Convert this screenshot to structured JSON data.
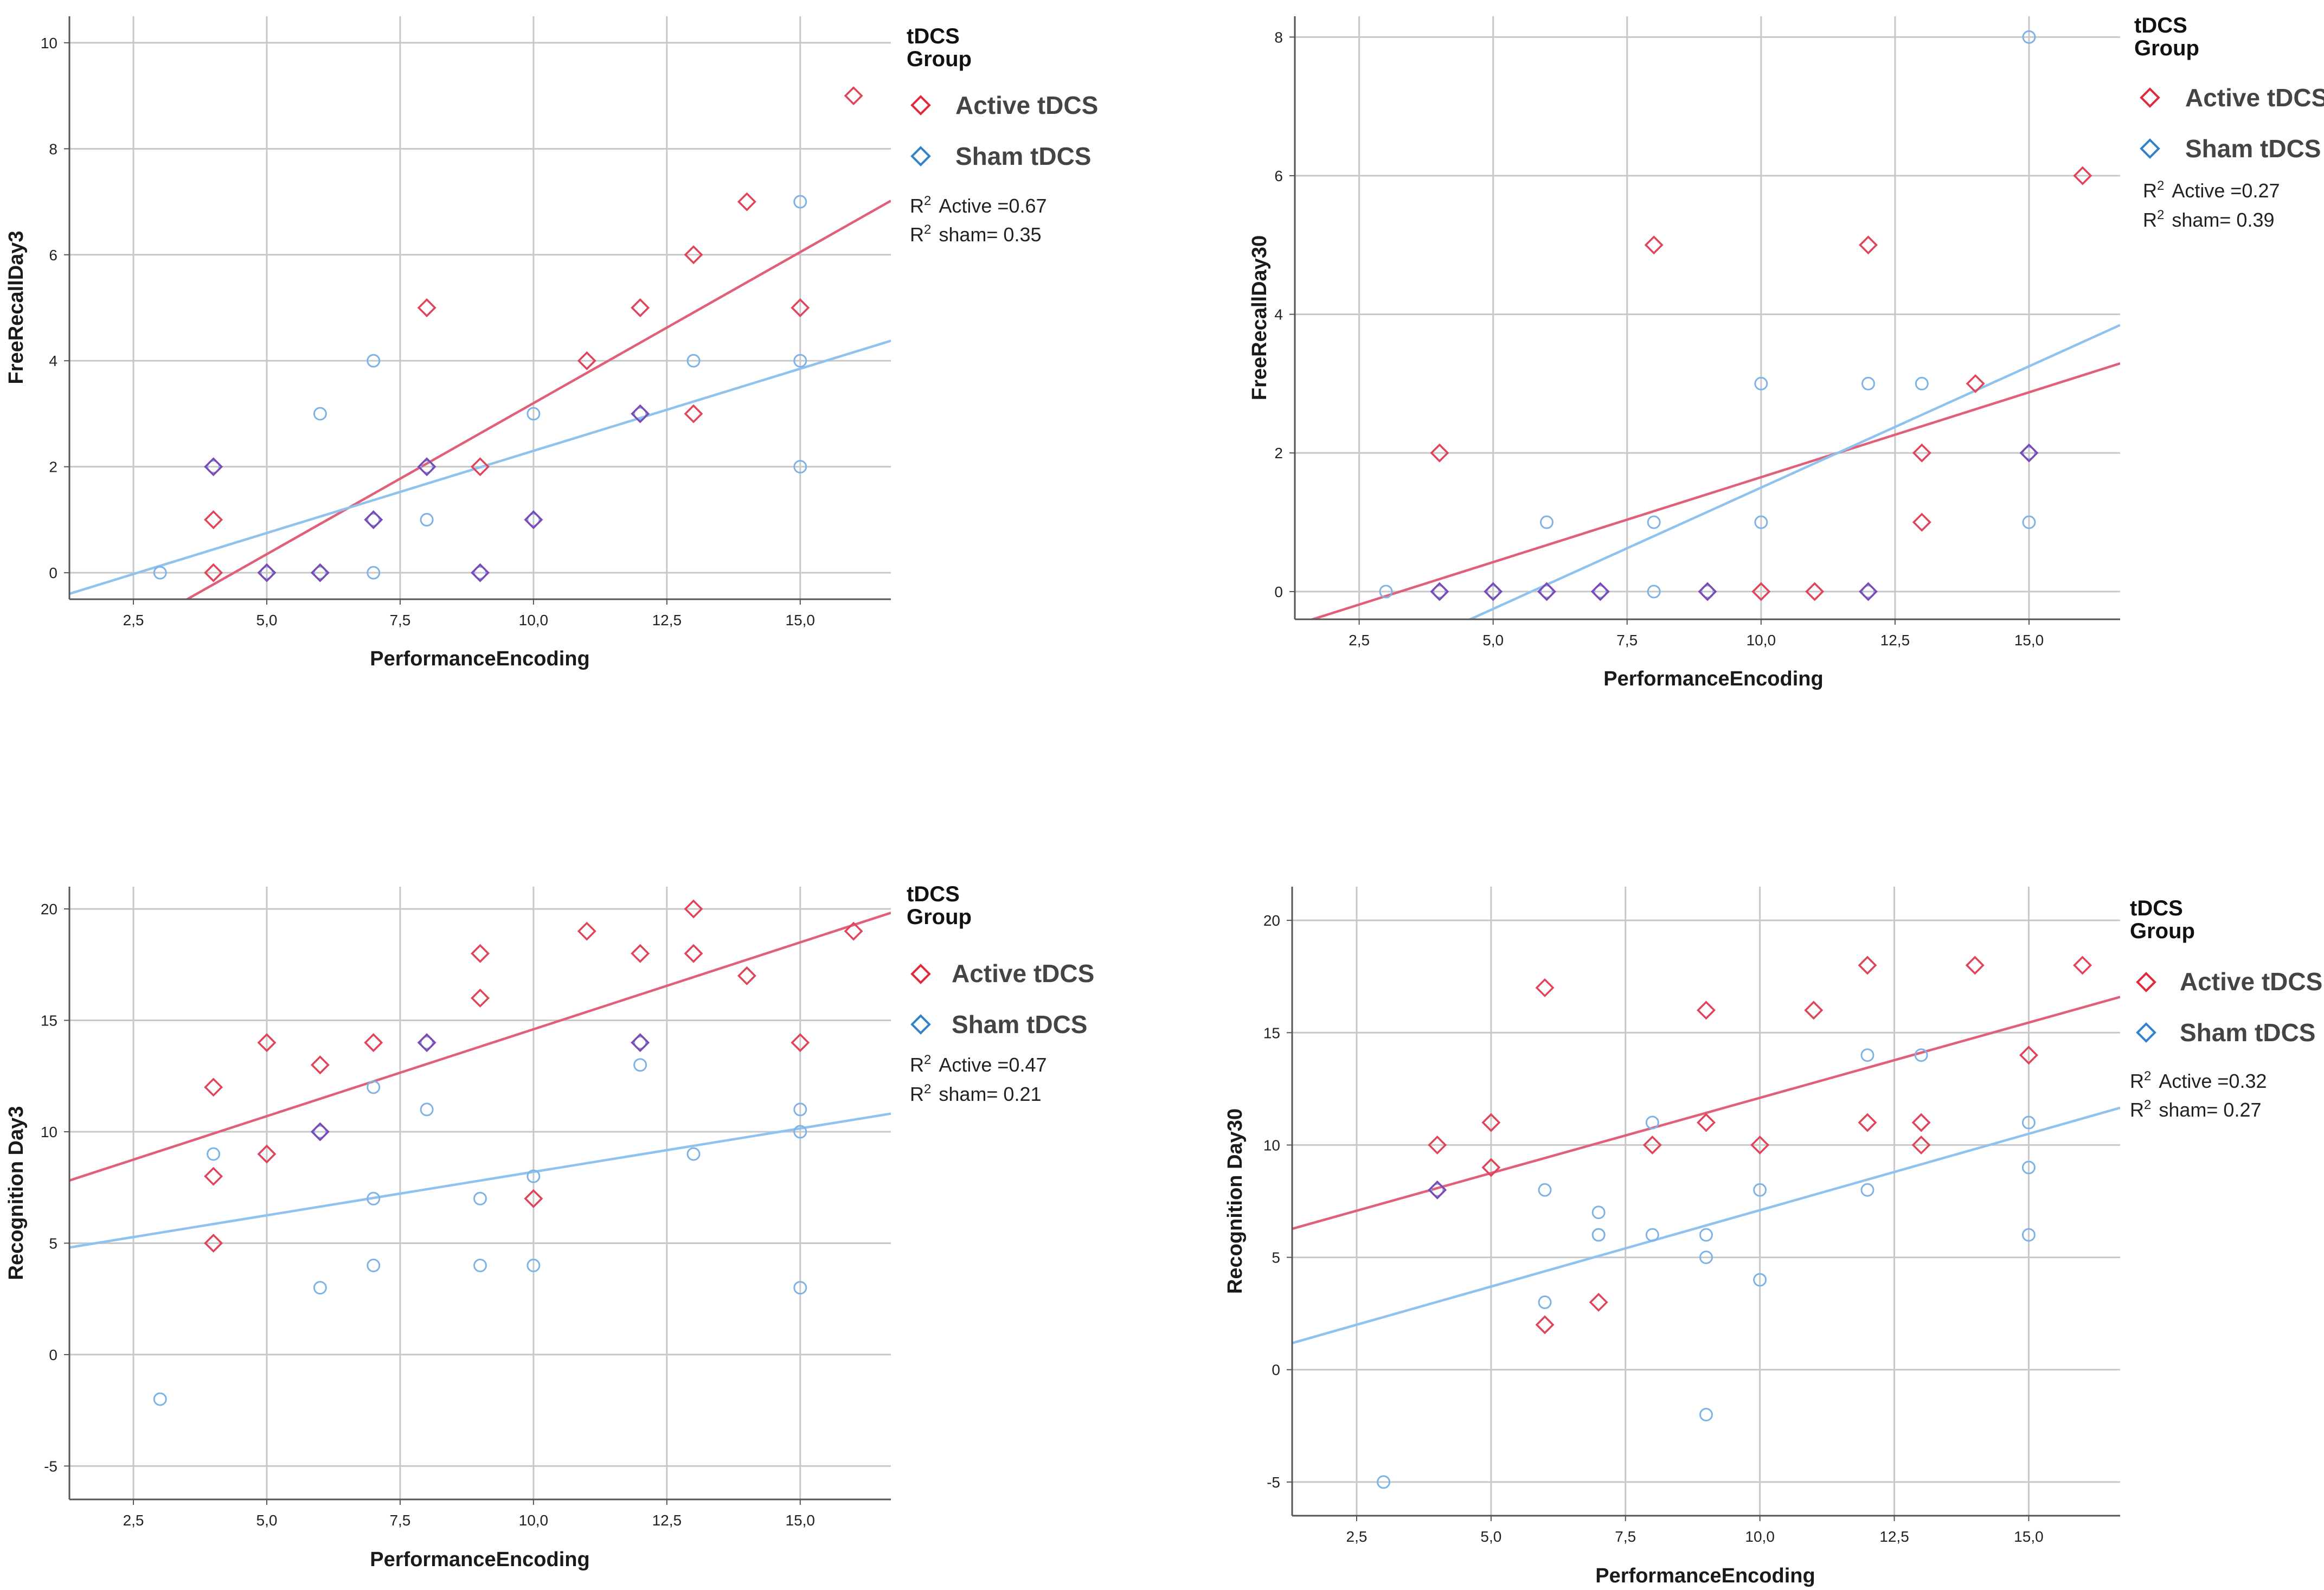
{
  "figure_title": "",
  "colors": {
    "active": "#e0435a",
    "active_line": "#e0607a",
    "sham": "#7fb2e6",
    "sham_line": "#8fc3ee",
    "grid": "#c8c8c8",
    "overlap": "#7d4ab5",
    "legend_active": "#e02a3c",
    "legend_sham": "#2f82c8"
  },
  "chart_data": [
    {
      "type": "scatter",
      "id": "p1",
      "title": "",
      "xlabel": "PerformanceEncoding",
      "ylabel": "FreeRecallDay3",
      "xlim": [
        1.3,
        16.7
      ],
      "ylim": [
        -0.5,
        10.5
      ],
      "xticks": [
        2.5,
        5.0,
        7.5,
        10.0,
        12.5,
        15.0
      ],
      "xtick_labels": [
        "2,5",
        "5,0",
        "7,5",
        "10,0",
        "12,5",
        "15,0"
      ],
      "yticks": [
        0,
        2,
        4,
        6,
        8,
        10
      ],
      "ytick_labels": [
        "0",
        "2",
        "4",
        "6",
        "8",
        "10"
      ],
      "legend": {
        "title_line1": "tDCS",
        "title_line2": "Group",
        "items": [
          {
            "label": "Active tDCS",
            "series": "active"
          },
          {
            "label": "Sham tDCS",
            "series": "sham"
          }
        ],
        "r2_active": "Active =0.67",
        "r2_sham": "sham= 0.35",
        "position": "right"
      },
      "series": [
        {
          "name": "Active tDCS",
          "marker": "diamond",
          "x": [
            4,
            4,
            4,
            5,
            6,
            7,
            8,
            8,
            9,
            9,
            10,
            11,
            12,
            12,
            13,
            13,
            14,
            15,
            16
          ],
          "y": [
            2,
            1,
            0,
            0,
            0,
            1,
            5,
            2,
            2,
            0,
            1,
            4,
            5,
            3,
            6,
            3,
            7,
            5,
            9
          ],
          "fit": {
            "slope": 0.57,
            "intercept": -2.5,
            "r2": 0.67
          }
        },
        {
          "name": "Sham tDCS",
          "marker": "circle",
          "x": [
            3,
            4,
            5,
            6,
            6,
            7,
            7,
            7,
            8,
            8,
            9,
            10,
            10,
            12,
            13,
            15,
            15,
            15
          ],
          "y": [
            0,
            2,
            0,
            3,
            0,
            4,
            1,
            0,
            2,
            1,
            0,
            3,
            1,
            3,
            4,
            7,
            4,
            2
          ],
          "fit": {
            "slope": 0.31,
            "intercept": -0.8,
            "r2": 0.35
          }
        }
      ]
    },
    {
      "type": "scatter",
      "id": "p2",
      "title": "",
      "xlabel": "PerformanceEncoding",
      "ylabel": "FreeRecallDay30",
      "xlim": [
        1.3,
        16.7
      ],
      "ylim": [
        -0.4,
        8.3
      ],
      "xticks": [
        2.5,
        5.0,
        7.5,
        10.0,
        12.5,
        15.0
      ],
      "xtick_labels": [
        "2,5",
        "5,0",
        "7,5",
        "10,0",
        "12,5",
        "15,0"
      ],
      "yticks": [
        0,
        2,
        4,
        6,
        8
      ],
      "ytick_labels": [
        "0",
        "2",
        "4",
        "6",
        "8"
      ],
      "legend": {
        "title_line1": "tDCS",
        "title_line2": "Group",
        "items": [
          {
            "label": "Active tDCS",
            "series": "active"
          },
          {
            "label": "Sham tDCS",
            "series": "sham"
          }
        ],
        "r2_active": "Active =0.27",
        "r2_sham": "sham= 0.39",
        "position": "right"
      },
      "series": [
        {
          "name": "Active tDCS",
          "marker": "diamond",
          "x": [
            4,
            4,
            5,
            6,
            7,
            8,
            9,
            10,
            11,
            12,
            12,
            13,
            13,
            14,
            15,
            16
          ],
          "y": [
            2,
            0,
            0,
            0,
            0,
            5,
            0,
            0,
            0,
            5,
            0,
            2,
            1,
            3,
            2,
            6
          ],
          "fit": {
            "slope": 0.245,
            "intercept": -0.8,
            "r2": 0.27
          }
        },
        {
          "name": "Sham tDCS",
          "marker": "circle",
          "x": [
            3,
            4,
            5,
            6,
            6,
            7,
            8,
            8,
            9,
            10,
            10,
            12,
            12,
            13,
            15,
            15,
            15
          ],
          "y": [
            0,
            0,
            0,
            1,
            0,
            0,
            1,
            0,
            0,
            3,
            1,
            3,
            0,
            3,
            8,
            2,
            1
          ],
          "fit": {
            "slope": 0.35,
            "intercept": -2.0,
            "r2": 0.39
          }
        }
      ]
    },
    {
      "type": "scatter",
      "id": "p3",
      "title": "",
      "xlabel": "PerformanceEncoding",
      "ylabel": "Recognition Day3",
      "xlim": [
        1.3,
        16.7
      ],
      "ylim": [
        -6.5,
        21.0
      ],
      "xticks": [
        2.5,
        5.0,
        7.5,
        10.0,
        12.5,
        15.0
      ],
      "xtick_labels": [
        "2,5",
        "5,0",
        "7,5",
        "10,0",
        "12,5",
        "15,0"
      ],
      "yticks": [
        -5,
        0,
        5,
        10,
        15,
        20
      ],
      "ytick_labels": [
        "-5",
        "0",
        "5",
        "10",
        "15",
        "20"
      ],
      "legend": {
        "title_line1": "tDCS",
        "title_line2": "Group",
        "items": [
          {
            "label": "Active tDCS",
            "series": "active"
          },
          {
            "label": "Sham tDCS",
            "series": "sham"
          }
        ],
        "r2_active": "Active =0.47",
        "r2_sham": "sham= 0.21",
        "position": "right"
      },
      "series": [
        {
          "name": "Active tDCS",
          "marker": "diamond",
          "x": [
            4,
            4,
            4,
            5,
            5,
            6,
            6,
            7,
            8,
            9,
            9,
            10,
            11,
            12,
            12,
            13,
            13,
            14,
            15,
            16
          ],
          "y": [
            12,
            8,
            5,
            14,
            9,
            13,
            10,
            14,
            14,
            18,
            16,
            7,
            19,
            18,
            14,
            20,
            18,
            17,
            14,
            19
          ],
          "fit": {
            "slope": 0.78,
            "intercept": 6.8,
            "r2": 0.47
          }
        },
        {
          "name": "Sham tDCS",
          "marker": "circle",
          "x": [
            3,
            4,
            6,
            6,
            7,
            7,
            7,
            8,
            8,
            9,
            9,
            10,
            10,
            12,
            12,
            13,
            15,
            15,
            15
          ],
          "y": [
            -2,
            9,
            10,
            3,
            12,
            7,
            4,
            14,
            11,
            7,
            4,
            8,
            4,
            14,
            13,
            9,
            11,
            10,
            3
          ],
          "fit": {
            "slope": 0.39,
            "intercept": 4.3,
            "r2": 0.21
          }
        }
      ]
    },
    {
      "type": "scatter",
      "id": "p4",
      "title": "",
      "xlabel": "PerformanceEncoding",
      "ylabel": "Recognition Day30",
      "xlim": [
        1.3,
        16.7
      ],
      "ylim": [
        -6.5,
        21.5
      ],
      "xticks": [
        2.5,
        5.0,
        7.5,
        10.0,
        12.5,
        15.0
      ],
      "xtick_labels": [
        "2,5",
        "5,0",
        "7,5",
        "10,0",
        "12,5",
        "15,0"
      ],
      "yticks": [
        -5,
        0,
        5,
        10,
        15,
        20
      ],
      "ytick_labels": [
        "-5",
        "0",
        "5",
        "10",
        "15",
        "20"
      ],
      "legend": {
        "title_line1": "tDCS",
        "title_line2": "Group",
        "items": [
          {
            "label": "Active tDCS",
            "series": "active"
          },
          {
            "label": "Sham tDCS",
            "series": "sham"
          }
        ],
        "r2_active": "Active =0.32",
        "r2_sham": "sham= 0.27",
        "position": "right"
      },
      "series": [
        {
          "name": "Active tDCS",
          "marker": "diamond",
          "x": [
            4,
            4,
            5,
            5,
            6,
            6,
            7,
            8,
            9,
            9,
            10,
            11,
            12,
            12,
            13,
            13,
            14,
            15,
            16
          ],
          "y": [
            10,
            8,
            11,
            9,
            17,
            2,
            3,
            10,
            16,
            11,
            10,
            16,
            18,
            11,
            11,
            10,
            18,
            14,
            18
          ],
          "fit": {
            "slope": 0.67,
            "intercept": 5.4,
            "r2": 0.32
          }
        },
        {
          "name": "Sham tDCS",
          "marker": "circle",
          "x": [
            3,
            4,
            6,
            6,
            7,
            7,
            7,
            8,
            8,
            9,
            9,
            9,
            10,
            10,
            12,
            12,
            13,
            15,
            15,
            15
          ],
          "y": [
            -5,
            8,
            8,
            3,
            7,
            6,
            6,
            11,
            6,
            6,
            5,
            -2,
            8,
            4,
            14,
            8,
            14,
            11,
            9,
            6
          ],
          "fit": {
            "slope": 0.68,
            "intercept": 0.3,
            "r2": 0.27
          }
        }
      ]
    }
  ]
}
